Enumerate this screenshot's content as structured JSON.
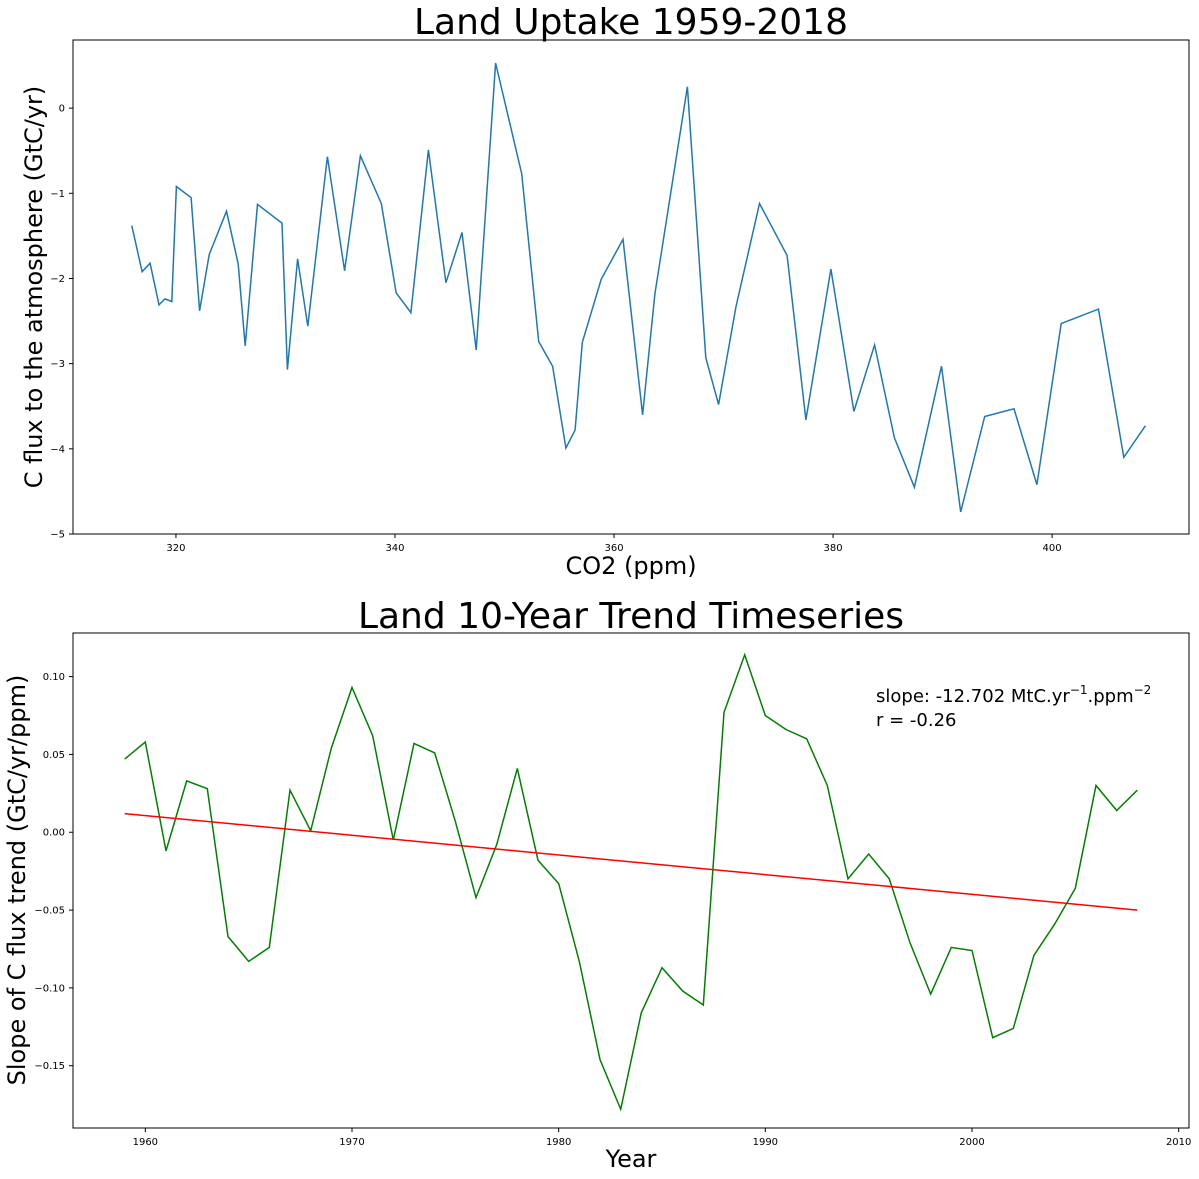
{
  "chart_data": [
    {
      "type": "line",
      "title": "Land Uptake 1959-2018",
      "xlabel": "CO2 (ppm)",
      "ylabel": "C flux to the atmosphere (GtC/yr)",
      "xlim": [
        310.6,
        412.5
      ],
      "ylim": [
        -5,
        0.8
      ],
      "xticks": [
        320,
        340,
        360,
        380,
        400
      ],
      "yticks": [
        -5,
        -4,
        -3,
        -2,
        -1,
        0
      ],
      "series": [
        {
          "color": "#1f77b4",
          "x": [
            315.97,
            316.91,
            317.64,
            318.45,
            318.99,
            319.62,
            320.04,
            321.38,
            322.16,
            323.04,
            324.62,
            325.68,
            326.32,
            327.45,
            329.68,
            330.18,
            331.11,
            332.04,
            333.83,
            335.4,
            336.84,
            338.75,
            340.11,
            341.45,
            343.05,
            344.65,
            346.12,
            347.42,
            349.19,
            351.57,
            353.12,
            354.39,
            355.61,
            356.45,
            357.1,
            358.83,
            360.82,
            362.61,
            363.73,
            366.7,
            368.38,
            369.55,
            371.14,
            373.28,
            375.8,
            377.52,
            379.8,
            381.9,
            383.79,
            385.6,
            387.43,
            389.9,
            391.65,
            393.85,
            396.52,
            398.61,
            400.83,
            404.24,
            406.55,
            408.52
          ],
          "y": [
            -1.38,
            -1.92,
            -1.82,
            -2.31,
            -2.24,
            -2.27,
            -0.92,
            -1.05,
            -2.38,
            -1.72,
            -1.21,
            -1.83,
            -2.79,
            -1.13,
            -1.35,
            -3.07,
            -1.77,
            -2.56,
            -0.57,
            -1.91,
            -0.56,
            -1.12,
            -2.17,
            -2.4,
            -0.49,
            -2.05,
            -1.46,
            -2.84,
            0.53,
            -0.77,
            -2.74,
            -3.03,
            -3.99,
            -3.78,
            -2.75,
            -2.01,
            -1.54,
            -3.6,
            -2.18,
            0.25,
            -2.93,
            -3.48,
            -2.33,
            -1.12,
            -1.73,
            -3.66,
            -1.89,
            -3.56,
            -2.78,
            -3.87,
            -4.45,
            -3.03,
            -4.74,
            -3.62,
            -3.53,
            -4.42,
            -2.53,
            -2.36,
            -4.1,
            -3.73
          ]
        }
      ]
    },
    {
      "type": "line",
      "title": "Land 10-Year Trend Timeseries",
      "xlabel": "Year",
      "ylabel": "Slope of C flux trend (GtC/yr/ppm)",
      "xlim": [
        1956.5,
        2010.5
      ],
      "ylim": [
        -0.19,
        0.128
      ],
      "xticks": [
        1960,
        1970,
        1980,
        1990,
        2000,
        2010
      ],
      "yticks": [
        -0.15,
        -0.1,
        -0.05,
        0.0,
        0.05,
        0.1
      ],
      "ytick_labels": [
        "−0.15",
        "−0.10",
        "−0.05",
        "0.00",
        "0.05",
        "0.10"
      ],
      "annotation": {
        "slope_prefix": "slope: -12.702 MtC.yr",
        "sup1": "−1",
        "mid": ".ppm",
        "sup2": "−2",
        "r": "r = -0.26"
      },
      "series": [
        {
          "color": "#008000",
          "x": [
            1959,
            1960,
            1961,
            1962,
            1963,
            1964,
            1965,
            1966,
            1967,
            1968,
            1969,
            1970,
            1971,
            1972,
            1973,
            1974,
            1975,
            1976,
            1977,
            1978,
            1979,
            1980,
            1981,
            1982,
            1983,
            1984,
            1985,
            1986,
            1987,
            1988,
            1989,
            1990,
            1991,
            1992,
            1993,
            1994,
            1995,
            1996,
            1997,
            1998,
            1999,
            2000,
            2001,
            2002,
            2003,
            2004,
            2005,
            2006,
            2007,
            2008
          ],
          "y": [
            0.047,
            0.058,
            -0.012,
            0.033,
            0.028,
            -0.067,
            -0.083,
            -0.074,
            0.027,
            0.001,
            0.054,
            0.093,
            0.062,
            -0.005,
            0.057,
            0.051,
            0.007,
            -0.042,
            -0.008,
            0.041,
            -0.018,
            -0.033,
            -0.083,
            -0.146,
            -0.178,
            -0.116,
            -0.087,
            -0.102,
            -0.111,
            0.077,
            0.114,
            0.075,
            0.066,
            0.06,
            0.03,
            -0.03,
            -0.014,
            -0.03,
            -0.071,
            -0.104,
            -0.074,
            -0.076,
            -0.132,
            -0.126,
            -0.079,
            -0.059,
            -0.036,
            0.03,
            0.014,
            0.027
          ]
        },
        {
          "color": "#ff0000",
          "x": [
            1959,
            2008
          ],
          "y": [
            0.012,
            -0.05
          ]
        }
      ]
    }
  ]
}
